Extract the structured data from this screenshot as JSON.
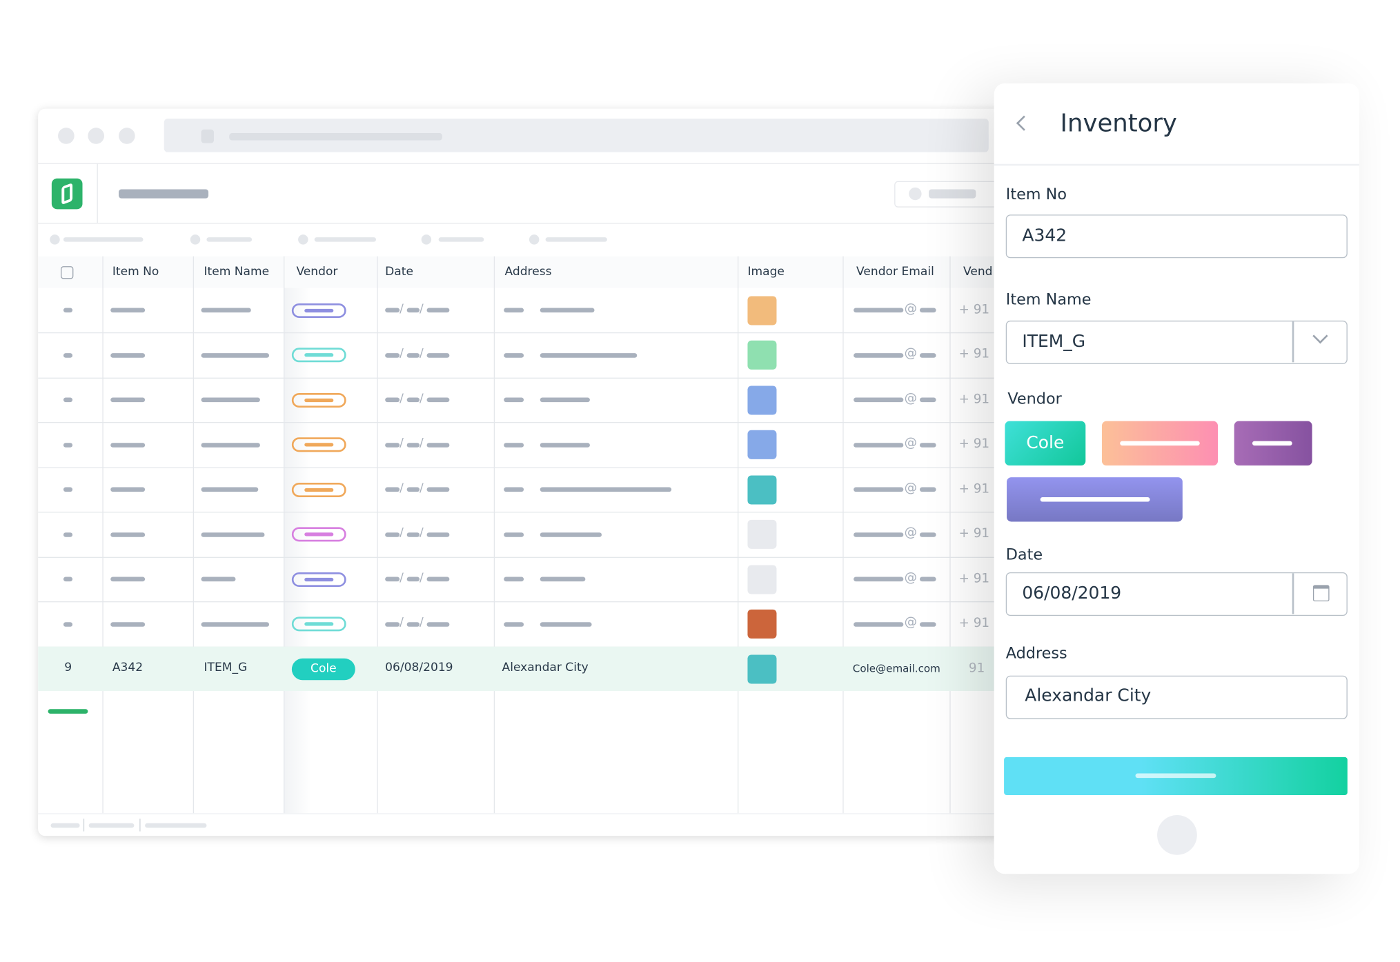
{
  "table": {
    "headers": [
      "Item No",
      "Item Name",
      "Vendor",
      "Date",
      "Address",
      "Image",
      "Vendor Email",
      "Vend"
    ],
    "date_separator": "/",
    "email_symbol": "@",
    "placeholder_rows": [
      {
        "vendor_color": "#8e8fe0",
        "image_color": "#f2bb7c",
        "phone": "+ 91"
      },
      {
        "vendor_color": "#6fdcd6",
        "image_color": "#8fe0b0",
        "phone": "+ 91"
      },
      {
        "vendor_color": "#f0a85a",
        "image_color": "#86a9e8",
        "phone": "+ 91"
      },
      {
        "vendor_color": "#f0a85a",
        "image_color": "#86a9e8",
        "phone": "+ 91"
      },
      {
        "vendor_color": "#f0a85a",
        "image_color": "#4bbfc3",
        "phone": "+ 91"
      },
      {
        "vendor_color": "#d77fe0",
        "image_color": "#e8eaee",
        "phone": "+ 91"
      },
      {
        "vendor_color": "#8e8fe0",
        "image_color": "#e8eaee",
        "phone": "+ 91"
      },
      {
        "vendor_color": "#6fdcd6",
        "image_color": "#cc653b",
        "phone": "+ 91"
      }
    ],
    "selected_row": {
      "index": "9",
      "item_no": "A342",
      "item_name": "ITEM_G",
      "vendor": "Cole",
      "date": "06/08/2019",
      "address": "Alexandar City",
      "image_color": "#4bbfc3",
      "vendor_email": "Cole@email.com",
      "vendor_phone": "91"
    }
  },
  "form": {
    "title": "Inventory",
    "item_no_label": "Item No",
    "item_no": "A342",
    "item_name_label": "Item Name",
    "item_name": "ITEM_G",
    "vendor_label": "Vendor",
    "vendor_option": "Cole",
    "date_label": "Date",
    "date": "06/08/2019",
    "address_label": "Address",
    "address": "Alexandar City"
  }
}
